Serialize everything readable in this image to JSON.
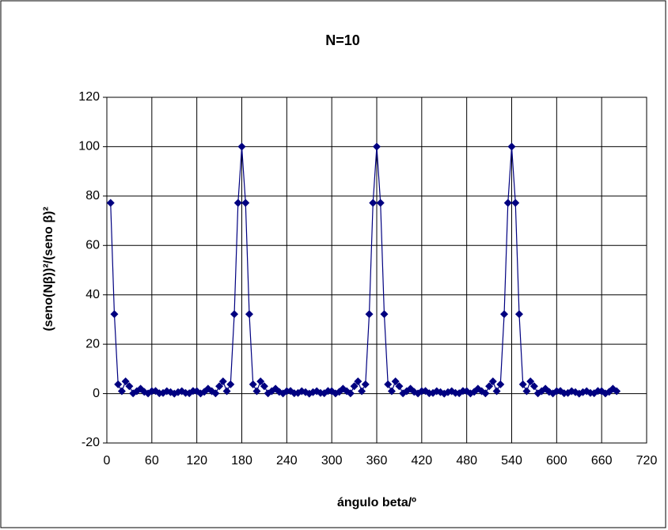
{
  "chart_data": {
    "type": "scatter-line",
    "title": "N=10",
    "x_label": "ángulo beta/º",
    "y_label": "(seno(Nβ))²/(seno β)²",
    "xlim": [
      0,
      720
    ],
    "xticks": [
      0,
      60,
      120,
      180,
      240,
      300,
      360,
      420,
      480,
      540,
      600,
      660,
      720
    ],
    "ylim": [
      -20,
      120
    ],
    "yticks": [
      -20,
      0,
      20,
      40,
      60,
      80,
      100,
      120
    ],
    "grid": true,
    "series": [
      {
        "color": "#000080",
        "x": [
          5,
          10,
          15,
          20,
          25,
          30,
          35,
          40,
          45,
          50,
          55,
          60,
          65,
          70,
          75,
          80,
          85,
          90,
          95,
          100,
          105,
          110,
          115,
          120,
          125,
          130,
          135,
          140,
          145,
          150,
          155,
          160,
          165,
          170,
          175,
          180,
          185,
          190,
          195,
          200,
          205,
          210,
          215,
          220,
          225,
          230,
          235,
          240,
          245,
          250,
          255,
          260,
          265,
          270,
          275,
          280,
          285,
          290,
          295,
          300,
          305,
          310,
          315,
          320,
          325,
          330,
          335,
          340,
          345,
          350,
          355,
          360,
          365,
          370,
          375,
          380,
          385,
          390,
          395,
          400,
          405,
          410,
          415,
          420,
          425,
          430,
          435,
          440,
          445,
          450,
          455,
          460,
          465,
          470,
          475,
          480,
          485,
          490,
          495,
          500,
          505,
          510,
          515,
          520,
          525,
          530,
          535,
          540,
          545,
          550,
          555,
          560,
          565,
          570,
          575,
          580,
          585,
          590,
          595,
          600,
          605,
          610,
          615,
          620,
          625,
          630,
          635,
          640,
          645,
          650,
          655,
          660,
          665,
          670,
          675,
          680
        ],
        "values": [
          77.25,
          32.16,
          3.73,
          1,
          4.94,
          3,
          0.09,
          1,
          2,
          0.7,
          0.05,
          1,
          1.07,
          0.13,
          0.27,
          1,
          0.59,
          0,
          0.59,
          1,
          0.27,
          0.13,
          1.07,
          1,
          0.05,
          0.7,
          2,
          1,
          0.09,
          3,
          4.94,
          1,
          3.73,
          32.16,
          77.25,
          100,
          77.25,
          32.16,
          3.73,
          1,
          4.94,
          3,
          0.09,
          1,
          2,
          0.7,
          0.05,
          1,
          1.07,
          0.13,
          0.27,
          1,
          0.59,
          0,
          0.59,
          1,
          0.27,
          0.13,
          1.07,
          1,
          0.05,
          0.7,
          2,
          1,
          0.09,
          3,
          4.94,
          1,
          3.73,
          32.16,
          77.25,
          100,
          77.25,
          32.16,
          3.73,
          1,
          4.94,
          3,
          0.09,
          1,
          2,
          0.7,
          0.05,
          1,
          1.07,
          0.13,
          0.27,
          1,
          0.59,
          0,
          0.59,
          1,
          0.27,
          0.13,
          1.07,
          1,
          0.05,
          0.7,
          2,
          1,
          0.09,
          3,
          4.94,
          1,
          3.73,
          32.16,
          77.25,
          100,
          77.25,
          32.16,
          3.73,
          1,
          4.94,
          3,
          0.09,
          1,
          2,
          0.7,
          0.05,
          1,
          1.07,
          0.13,
          0.27,
          1,
          0.59,
          0,
          0.59,
          1,
          0.27,
          0.13,
          1.07,
          1,
          0.05,
          0.7,
          2,
          1
        ]
      }
    ]
  }
}
